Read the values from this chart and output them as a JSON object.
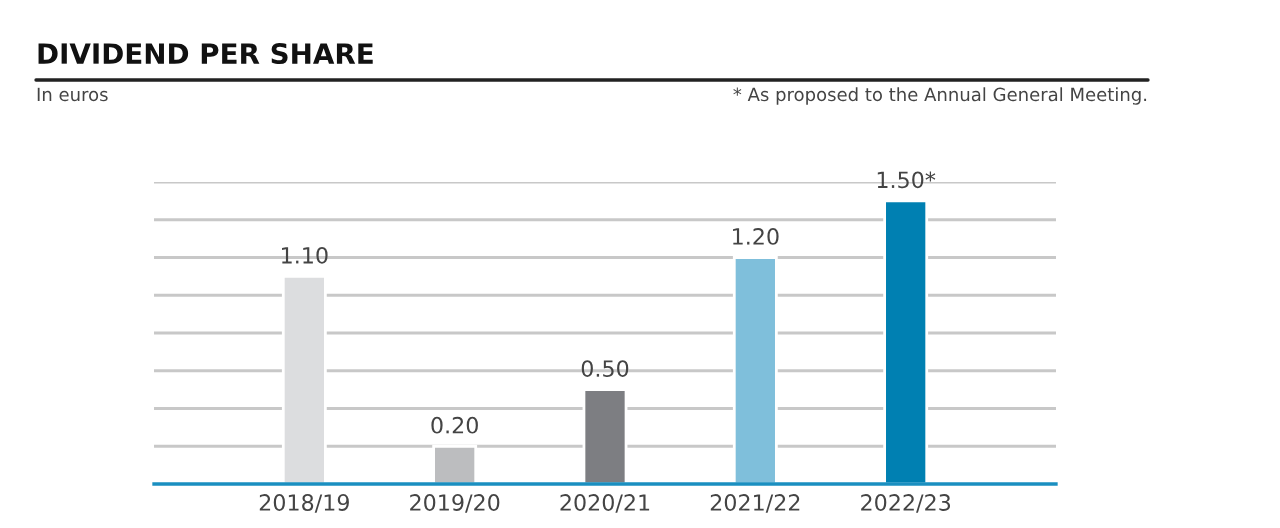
{
  "chart_data": {
    "type": "bar",
    "title": "DIVIDEND PER SHARE",
    "subtitle": "In euros",
    "annotations": [
      "* As proposed to the Annual General Meeting."
    ],
    "categories": [
      "2018/19",
      "2019/20",
      "2020/21",
      "2021/22",
      "2022/23"
    ],
    "values": [
      1.1,
      0.2,
      0.5,
      1.2,
      1.5
    ],
    "colors": [
      "#dcdddf",
      "#bcbdbf",
      "#7d7e82",
      "#7fbfdb",
      "#0080b2"
    ],
    "value_labels": [
      "1.10",
      "0.20",
      "0.50",
      "1.20",
      "1.50*"
    ],
    "ylim": [
      0,
      1.6
    ],
    "yticks": [
      {
        "value": 0.2,
        "label": null
      },
      {
        "value": 0.4,
        "label": null
      },
      {
        "value": 0.6,
        "label": null
      },
      {
        "value": 0.8,
        "label": null
      },
      {
        "value": 1.0,
        "label": null
      },
      {
        "value": 1.2,
        "label": null
      },
      {
        "value": 1.4,
        "label": null
      },
      {
        "value": 1.6,
        "label": null
      }
    ],
    "grid": "y",
    "tick_labels": "x",
    "legend": false
  }
}
